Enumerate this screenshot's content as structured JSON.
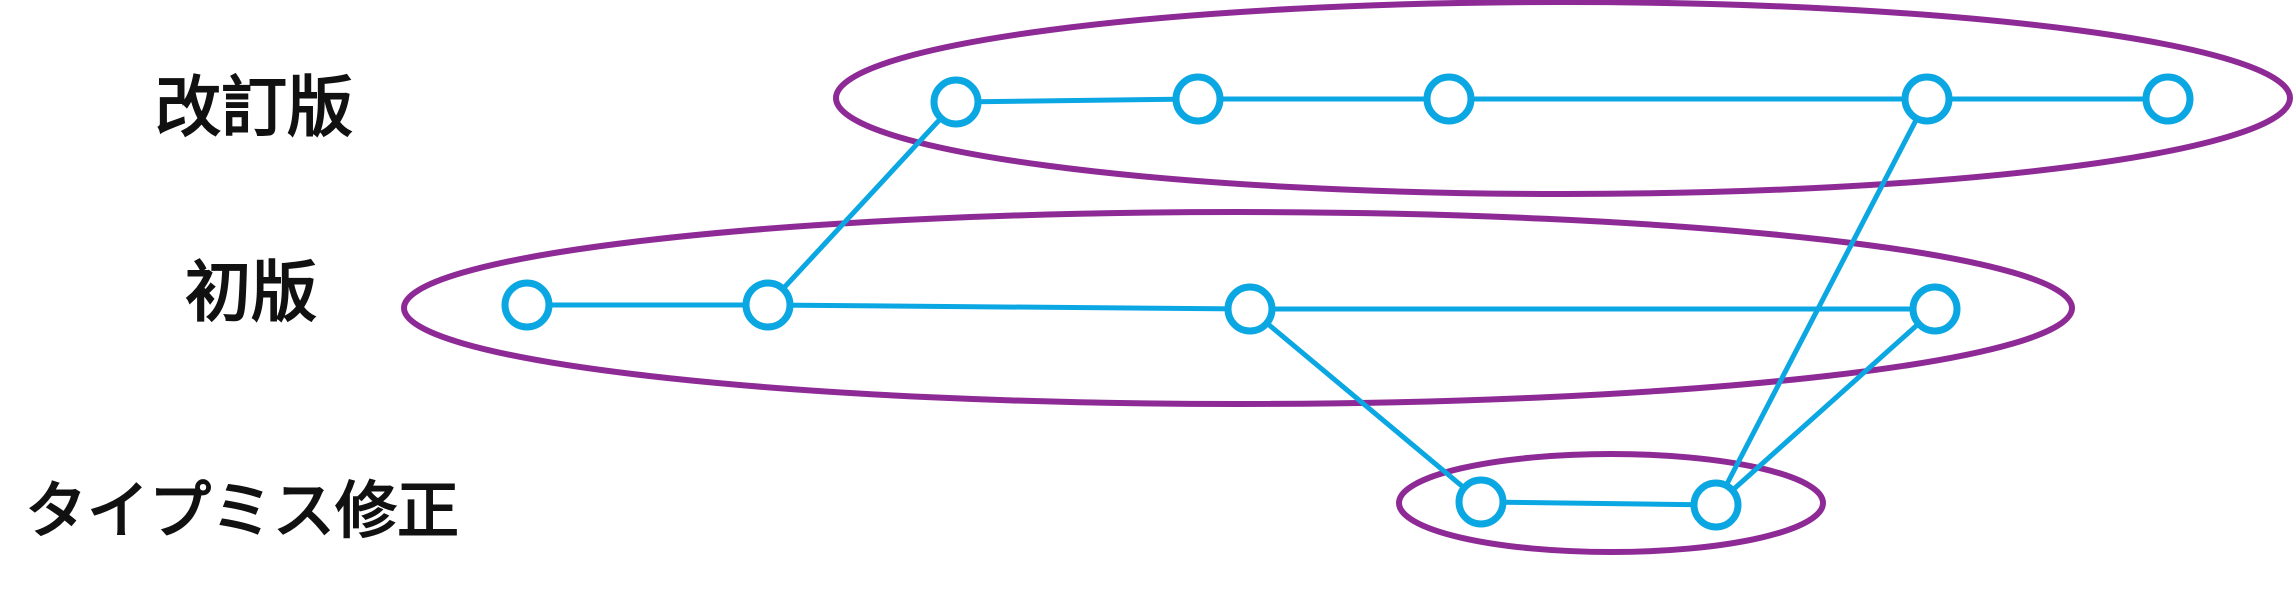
{
  "labels": {
    "revised": "改訂版",
    "first": "初版",
    "typo_fix": "タイプミス修正"
  },
  "colors": {
    "ellipse_stroke": "#8e2a96",
    "line_stroke": "#0aa7e2",
    "node_fill": "#ffffff",
    "label_text": "#111111"
  }
}
